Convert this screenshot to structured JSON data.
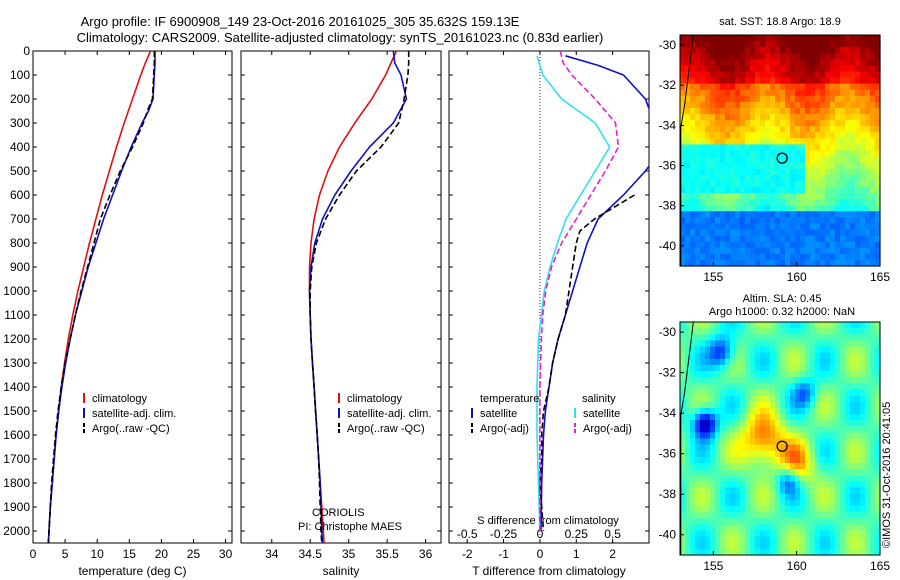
{
  "title": {
    "line1": "Argo profile: IF 6900908_149 23-Oct-2016 20161025_305 35.632S 159.13E",
    "line2": "Climatology: CARS2009. Satellite-adjusted climatology: synTS_20161023.nc (0.83d earlier)"
  },
  "colors": {
    "climatology": "#e01010",
    "satellite": "#1010c8",
    "argo": "#000000",
    "salinity_satellite": "#30e0f0",
    "salinity_argo": "#e020e0"
  },
  "chart_data": [
    {
      "type": "line",
      "panel": "temperature",
      "xlabel": "temperature (deg C)",
      "ylabel": "",
      "xlim": [
        0,
        31
      ],
      "ylim": [
        2050,
        0
      ],
      "xticks": [
        0,
        5,
        10,
        15,
        20,
        25,
        30
      ],
      "yticks": [
        0,
        100,
        200,
        300,
        400,
        500,
        600,
        700,
        800,
        900,
        1000,
        1100,
        1200,
        1300,
        1400,
        1500,
        1600,
        1700,
        1800,
        1900,
        2000
      ],
      "legend": [
        "climatology",
        "satellite-adj. clim.",
        "Argo(..raw -QC)"
      ],
      "series": [
        {
          "name": "climatology",
          "depth": [
            0,
            50,
            100,
            200,
            300,
            400,
            500,
            600,
            700,
            800,
            900,
            1000,
            1100,
            1200,
            1300,
            1400,
            1500,
            1600,
            1700,
            1800,
            1900,
            2000,
            2050
          ],
          "values": [
            18.3,
            17.5,
            16.8,
            15.5,
            14.2,
            13.0,
            11.9,
            10.8,
            9.8,
            8.8,
            7.9,
            7.0,
            6.2,
            5.5,
            4.9,
            4.4,
            4.0,
            3.6,
            3.3,
            3.0,
            2.7,
            2.5,
            2.4
          ]
        },
        {
          "name": "satellite-adj. clim.",
          "depth": [
            0,
            50,
            100,
            200,
            250,
            300,
            400,
            500,
            600,
            700,
            800,
            900,
            1000,
            1100,
            1200,
            1300,
            1400,
            1500,
            1600,
            1700,
            1800,
            1900,
            2000,
            2050
          ],
          "values": [
            19.0,
            19.0,
            18.9,
            18.7,
            18.0,
            17.0,
            15.3,
            13.8,
            12.4,
            11.0,
            9.8,
            8.6,
            7.6,
            6.6,
            5.8,
            5.1,
            4.5,
            4.0,
            3.6,
            3.3,
            3.0,
            2.7,
            2.5,
            2.4
          ]
        },
        {
          "name": "Argo(..raw -QC)",
          "depth": [
            0,
            50,
            100,
            200,
            250,
            300,
            400,
            500,
            600,
            700,
            800,
            900,
            1000,
            1100,
            1200,
            1300,
            1400,
            1500,
            1600,
            1700,
            1800,
            1900,
            2000,
            2050
          ],
          "values": [
            18.9,
            18.9,
            18.8,
            18.6,
            17.8,
            17.2,
            15.5,
            13.6,
            12.0,
            10.5,
            9.5,
            8.5,
            7.5,
            6.6,
            5.8,
            5.0,
            4.4,
            3.9,
            3.5,
            3.2,
            2.9,
            2.7,
            2.5,
            2.4
          ]
        }
      ]
    },
    {
      "type": "line",
      "panel": "salinity",
      "xlabel": "salinity",
      "xlim": [
        33.6,
        36.2
      ],
      "ylim": [
        2050,
        0
      ],
      "xticks": [
        34,
        34.5,
        35,
        35.5,
        36
      ],
      "legend": [
        "climatology",
        "satellite-adj. clim.",
        "Argo(..raw -QC)"
      ],
      "annotation": [
        "CORIOLIS",
        "PI: Christophe MAES"
      ],
      "series": [
        {
          "name": "climatology",
          "depth": [
            0,
            50,
            100,
            200,
            300,
            400,
            500,
            600,
            700,
            800,
            900,
            1000,
            1100,
            1200,
            1300,
            1400,
            1500,
            1600,
            1700,
            1800,
            1900,
            2000,
            2050
          ],
          "values": [
            35.62,
            35.55,
            35.48,
            35.3,
            35.08,
            34.88,
            34.73,
            34.62,
            34.55,
            34.51,
            34.49,
            34.49,
            34.5,
            34.51,
            34.53,
            34.55,
            34.57,
            34.59,
            34.61,
            34.63,
            34.65,
            34.67,
            34.68
          ]
        },
        {
          "name": "satellite-adj. clim.",
          "depth": [
            0,
            50,
            100,
            200,
            300,
            400,
            500,
            600,
            700,
            800,
            900,
            1000,
            1100,
            1200,
            1300,
            1400,
            1500,
            1600,
            1700,
            1800,
            1900,
            2000,
            2050
          ],
          "values": [
            35.58,
            35.6,
            35.68,
            35.75,
            35.58,
            35.27,
            35.03,
            34.82,
            34.66,
            34.56,
            34.51,
            34.49,
            34.5,
            34.51,
            34.53,
            34.55,
            34.57,
            34.59,
            34.61,
            34.63,
            34.64,
            34.65,
            34.66
          ]
        },
        {
          "name": "Argo(..raw -QC)",
          "depth": [
            0,
            50,
            100,
            200,
            300,
            400,
            500,
            600,
            700,
            800,
            900,
            1000,
            1100,
            1200,
            1300,
            1400,
            1500,
            1600,
            1700,
            1800,
            1900,
            2000,
            2050
          ],
          "values": [
            35.78,
            35.78,
            35.77,
            35.72,
            35.65,
            35.42,
            35.1,
            34.88,
            34.7,
            34.58,
            34.52,
            34.5,
            34.5,
            34.51,
            34.53,
            34.55,
            34.57,
            34.59,
            34.61,
            34.62,
            34.63,
            34.64,
            34.65
          ]
        }
      ]
    },
    {
      "type": "line",
      "panel": "difference",
      "xlabel": "T difference from climatology",
      "xlabel_top": "S difference from climatology",
      "xlim": [
        -2.5,
        3.0
      ],
      "ylim": [
        2050,
        0
      ],
      "xticks": [
        -2,
        -1,
        0,
        1,
        2
      ],
      "sticks_labels": [
        "-0.5",
        "-0.25",
        "0",
        "0.25",
        "0.5"
      ],
      "sticks_values": [
        -0.5,
        -0.25,
        0,
        0.25,
        0.5
      ],
      "legend_headers": [
        "temperature",
        "salinity"
      ],
      "legend": [
        "satellite",
        "Argo(-adj)",
        "satellite",
        "Argo(-adj)"
      ],
      "series": [
        {
          "name": "satellite",
          "variable": "temperature",
          "depth": [
            20,
            60,
            100,
            200,
            400,
            500,
            600,
            700,
            800,
            900,
            1000,
            1100,
            1200,
            1300,
            1400,
            1500,
            1600,
            1800,
            2000
          ],
          "values": [
            0.7,
            1.6,
            2.3,
            2.9,
            3.4,
            2.9,
            2.3,
            1.6,
            1.3,
            1.1,
            0.9,
            0.7,
            0.5,
            0.35,
            0.25,
            0.15,
            0.1,
            0.05,
            0.03
          ]
        },
        {
          "name": "Argo(-adj)",
          "variable": "temperature",
          "depth": [
            600,
            700,
            750,
            800,
            900,
            1000,
            1100,
            1200,
            1300,
            1400,
            1500,
            1600,
            1700,
            1800,
            1900,
            2000
          ],
          "values": [
            2.6,
            1.5,
            1.1,
            1.0,
            0.9,
            0.8,
            0.7,
            0.5,
            0.35,
            0.25,
            0.1,
            0.05,
            0.05,
            0.0,
            0.05,
            0.1
          ]
        },
        {
          "name": "satellite",
          "variable": "salinity",
          "depth": [
            20,
            100,
            200,
            300,
            400,
            500,
            600,
            700,
            800,
            900,
            1000,
            1200,
            1400,
            1600,
            1800,
            2000
          ],
          "values": [
            -0.02,
            0.02,
            0.15,
            0.38,
            0.48,
            0.38,
            0.28,
            0.18,
            0.12,
            0.07,
            0.03,
            -0.01,
            -0.02,
            -0.02,
            -0.01,
            0.0
          ]
        },
        {
          "name": "Argo(-adj)",
          "variable": "salinity",
          "depth": [
            0,
            50,
            100,
            200,
            300,
            400,
            500,
            600,
            700,
            800,
            900,
            1000,
            1100,
            1200,
            1400,
            1600,
            1800,
            2000
          ],
          "values": [
            0.14,
            0.16,
            0.22,
            0.38,
            0.52,
            0.54,
            0.45,
            0.35,
            0.25,
            0.15,
            0.08,
            0.04,
            0.02,
            0.01,
            0.0,
            0.0,
            0.0,
            0.0
          ]
        }
      ]
    },
    {
      "type": "heatmap",
      "panel": "sst-map",
      "title": "sat. SST: 18.8 Argo: 18.9",
      "xlim": [
        153,
        165
      ],
      "ylim": [
        -41,
        -29.5
      ],
      "xticks": [
        155,
        160,
        165
      ],
      "yticks": [
        -30,
        -32,
        -34,
        -36,
        -38,
        -40
      ],
      "marker": {
        "lon": 159.13,
        "lat": -35.632
      }
    },
    {
      "type": "heatmap",
      "panel": "sla-map",
      "title_lines": [
        "Altim. SLA: 0.45",
        "Argo h1000: 0.32 h2000: NaN"
      ],
      "xlim": [
        153,
        165
      ],
      "ylim": [
        -41,
        -29.5
      ],
      "xticks": [
        155,
        160,
        165
      ],
      "yticks": [
        -30,
        -32,
        -34,
        -36,
        -38,
        -40
      ],
      "marker": {
        "lon": 159.13,
        "lat": -35.632
      }
    }
  ],
  "credit": "©IMOS 31-Oct-2016 20:41:05"
}
